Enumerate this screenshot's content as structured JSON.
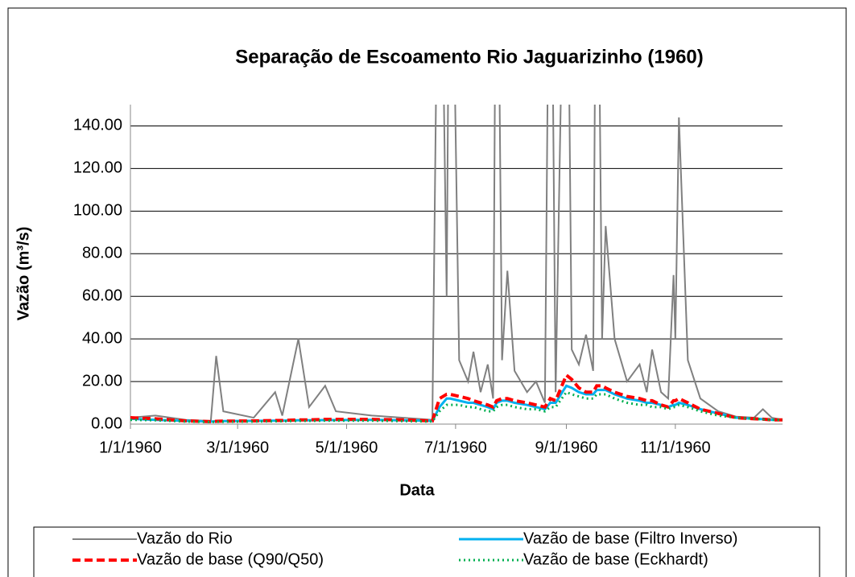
{
  "chart_data": {
    "type": "line",
    "title": "Separação de Escoamento Rio Jaguarizinho (1960)",
    "x_label": "Data",
    "y_label": "Vazão (m³/s)",
    "x": [
      "1/1/1960",
      "1/15/1960",
      "2/1/1960",
      "2/15/1960",
      "2/18/1960",
      "2/22/1960",
      "3/10/1960",
      "3/22/1960",
      "3/26/1960",
      "4/4/1960",
      "4/10/1960",
      "4/19/1960",
      "4/25/1960",
      "5/15/1960",
      "6/1/1960",
      "6/18/1960",
      "6/22/1960",
      "6/26/1960",
      "6/28/1960",
      "7/3/1960",
      "7/8/1960",
      "7/11/1960",
      "7/15/1960",
      "7/19/1960",
      "7/22/1960",
      "7/24/1960",
      "7/27/1960",
      "7/30/1960",
      "8/3/1960",
      "8/10/1960",
      "8/15/1960",
      "8/20/1960",
      "8/23/1960",
      "8/26/1960",
      "9/1/1960",
      "9/4/1960",
      "9/8/1960",
      "9/12/1960",
      "9/16/1960",
      "9/18/1960",
      "9/21/1960",
      "9/23/1960",
      "9/28/1960",
      "10/5/1960",
      "10/12/1960",
      "10/16/1960",
      "10/19/1960",
      "10/24/1960",
      "10/28/1960",
      "10/31/1960",
      "11/1/1960",
      "11/3/1960",
      "11/8/1960",
      "11/15/1960",
      "11/25/1960",
      "12/5/1960",
      "12/15/1960",
      "12/20/1960",
      "12/25/1960",
      "12/31/1960"
    ],
    "series": [
      {
        "name": "Vazão do Rio",
        "color": "#808080",
        "dash": "solid",
        "values": [
          3,
          4,
          2,
          1.5,
          32,
          6,
          3,
          15,
          4,
          40,
          8,
          18,
          6,
          4,
          3,
          2,
          300,
          60,
          300,
          30,
          20,
          34,
          15,
          28,
          12,
          300,
          30,
          72,
          25,
          15,
          20,
          10,
          300,
          15,
          300,
          35,
          28,
          42,
          25,
          300,
          40,
          93,
          40,
          20,
          28,
          15,
          35,
          15,
          12,
          70,
          40,
          144,
          30,
          12,
          6,
          3.5,
          3,
          7,
          3,
          2
        ]
      },
      {
        "name": "Vazão de base (Filtro Inverso)",
        "color": "#00b0f0",
        "dash": "solid",
        "values": [
          2.5,
          2,
          1.5,
          1.2,
          1.3,
          1.4,
          1.5,
          1.6,
          1.6,
          1.8,
          1.8,
          1.9,
          1.9,
          2,
          1.8,
          1.5,
          8,
          12,
          12,
          11,
          10,
          10,
          9,
          8,
          7,
          10,
          11,
          11,
          10,
          9,
          8,
          7,
          10,
          10,
          18,
          17,
          15,
          14,
          14,
          16,
          16,
          16,
          14,
          12,
          11,
          10,
          10,
          9,
          8,
          9,
          9,
          10,
          9,
          7,
          5,
          3,
          2.5,
          2.3,
          2,
          2
        ]
      },
      {
        "name": "Vazão de base (Q90/Q50)",
        "color": "#ff0000",
        "dash": "dashed",
        "values": [
          3,
          2.5,
          1.5,
          1.2,
          1.3,
          1.4,
          1.5,
          1.7,
          1.7,
          2,
          2,
          2.2,
          2.2,
          2.2,
          2,
          1.5,
          12,
          14,
          14,
          13,
          12,
          11,
          10,
          9,
          8,
          11,
          12,
          12,
          11,
          10,
          9,
          8,
          12,
          11,
          23,
          21,
          17,
          15,
          15,
          18,
          18,
          17,
          15,
          13,
          12,
          11,
          11,
          9,
          8,
          11,
          11,
          12,
          10,
          7,
          5,
          3,
          2.5,
          2.3,
          2,
          2
        ]
      },
      {
        "name": "Vazão de base (Eckhardt)",
        "color": "#00b050",
        "dash": "dotted",
        "values": [
          2,
          1.8,
          1.2,
          1,
          1.1,
          1.1,
          1.2,
          1.3,
          1.3,
          1.5,
          1.5,
          1.6,
          1.6,
          1.6,
          1.4,
          1.2,
          6,
          9,
          9,
          9,
          8,
          8,
          7,
          6,
          6,
          8,
          9,
          9,
          8,
          7,
          7,
          6,
          8,
          8,
          15,
          14,
          13,
          12,
          12,
          14,
          14,
          14,
          12,
          10,
          9,
          9,
          8,
          8,
          7,
          8,
          8,
          9,
          8,
          6,
          4,
          3,
          2.5,
          2.2,
          2,
          2
        ]
      }
    ],
    "xlim": [
      "1/1/1960",
      "12/31/1960"
    ],
    "xticks": [
      "1/1/1960",
      "3/1/1960",
      "5/1/1960",
      "7/1/1960",
      "9/1/1960",
      "11/1/1960"
    ],
    "ylim": [
      0,
      150
    ],
    "yticks": [
      {
        "value": 0,
        "label": "0.00"
      },
      {
        "value": 20,
        "label": "20.00"
      },
      {
        "value": 40,
        "label": "40.00"
      },
      {
        "value": 60,
        "label": "60.00"
      },
      {
        "value": 80,
        "label": "80.00"
      },
      {
        "value": 100,
        "label": "100.00"
      },
      {
        "value": 120,
        "label": "120.00"
      },
      {
        "value": 140,
        "label": "140.00"
      }
    ],
    "grid": true
  }
}
